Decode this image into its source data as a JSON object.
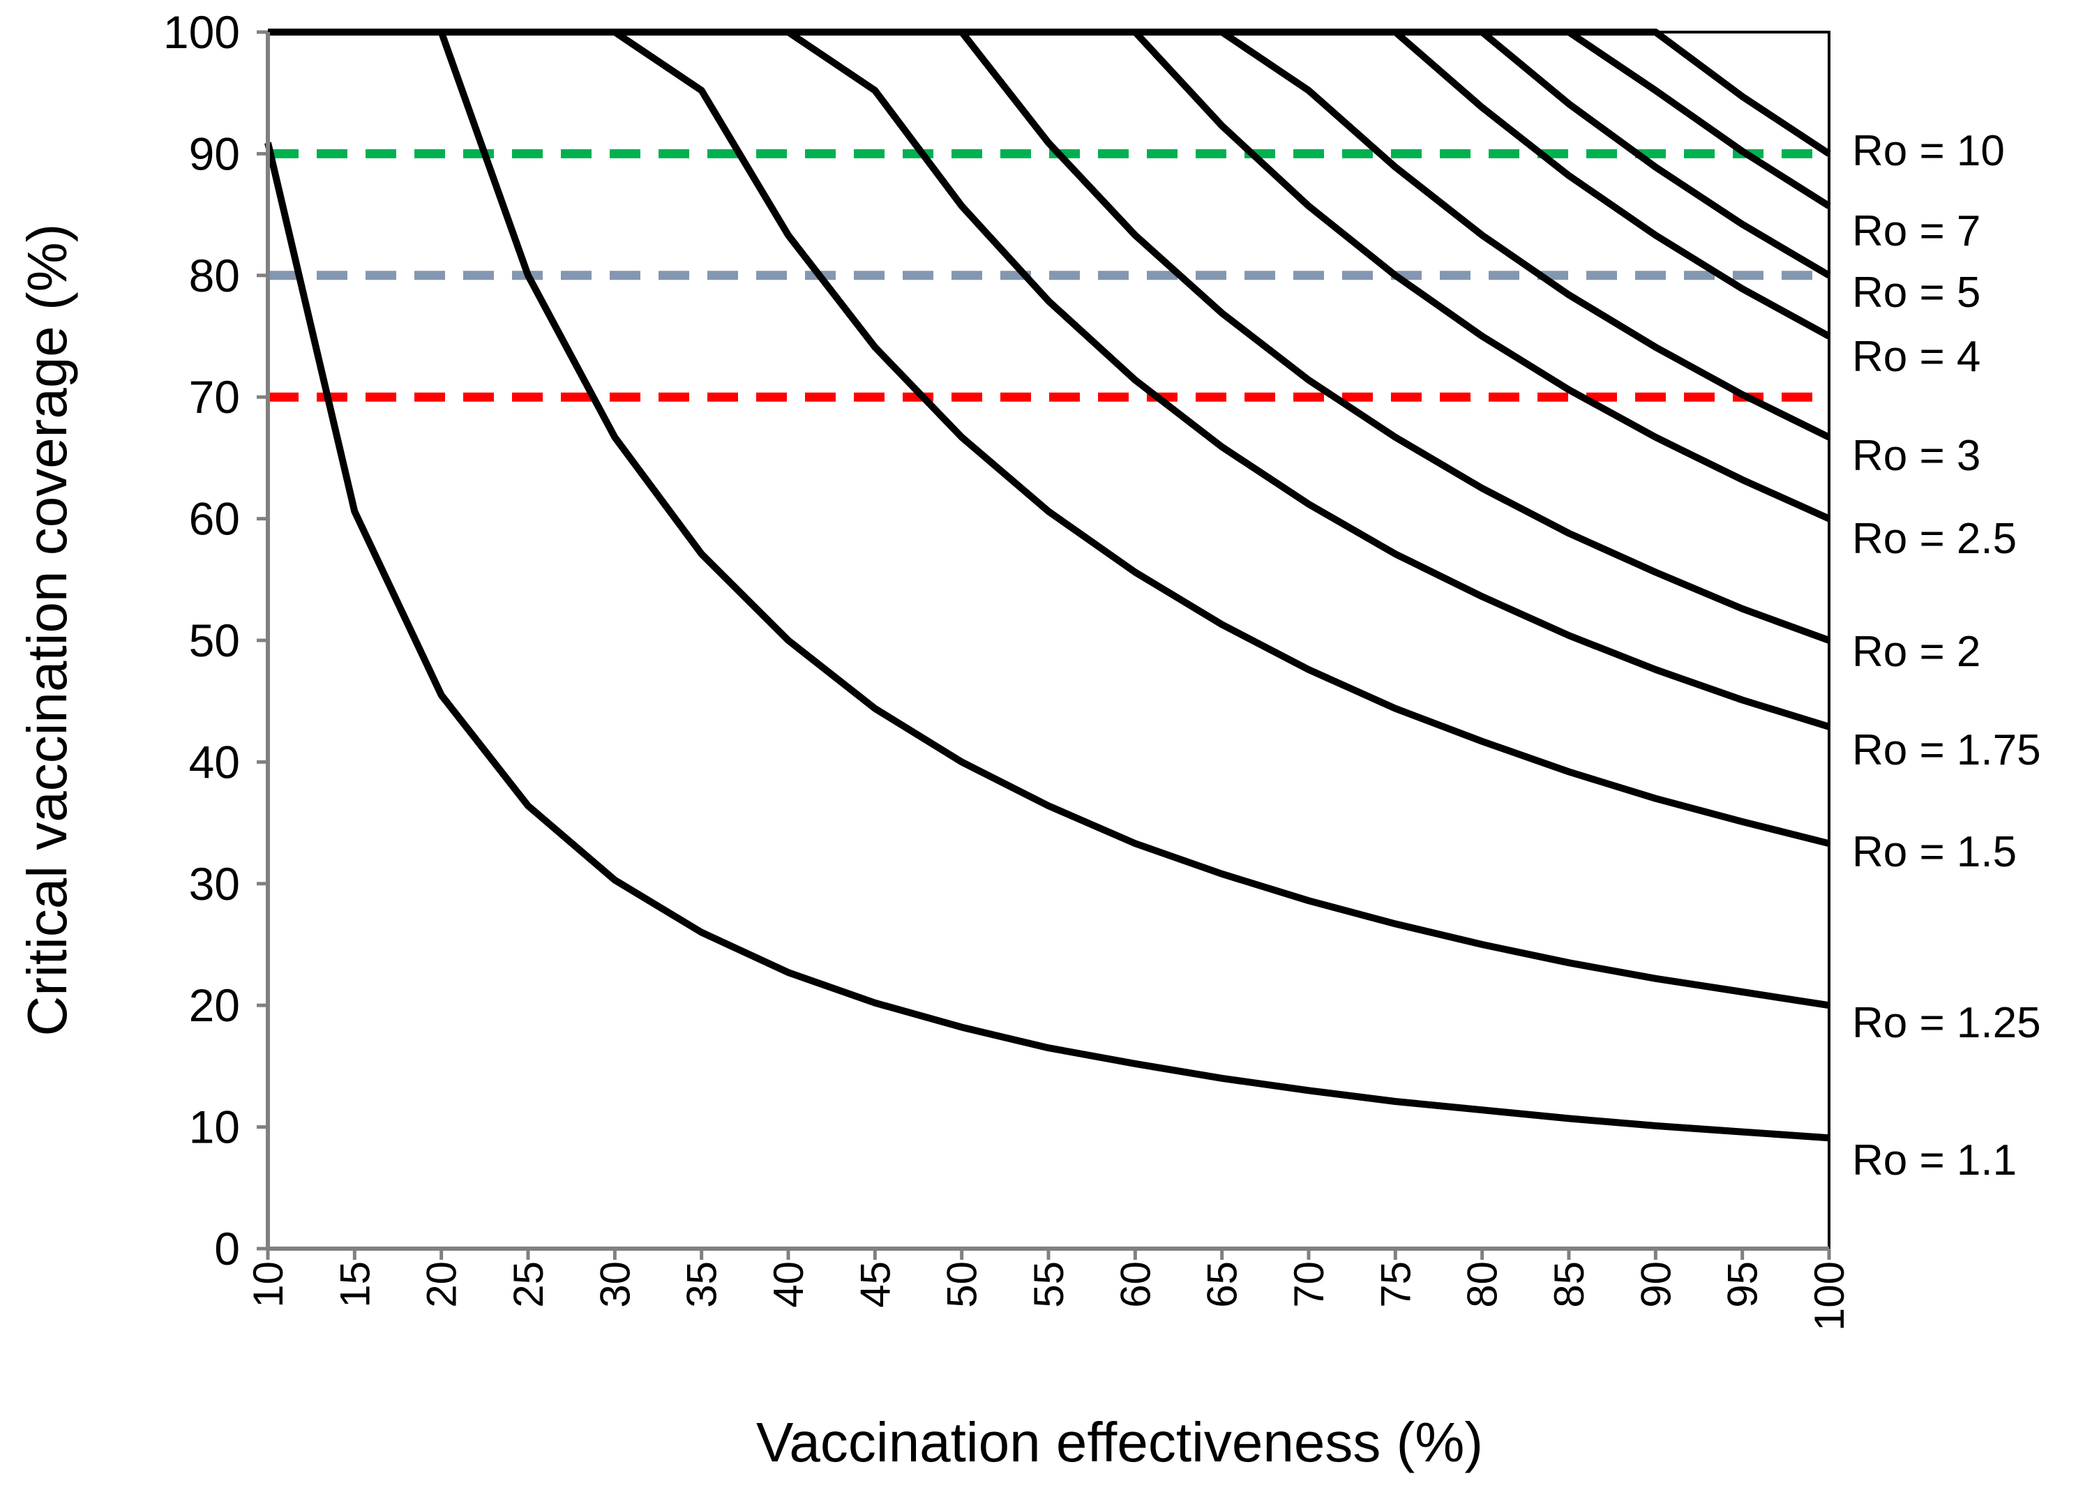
{
  "chart_data": {
    "type": "line",
    "title": "",
    "xlabel": "Vaccination effectiveness (%)",
    "ylabel": "Critical vaccination coverage (%)",
    "xlim": [
      10,
      100
    ],
    "ylim": [
      0,
      100
    ],
    "x_ticks": [
      10,
      15,
      20,
      25,
      30,
      35,
      40,
      45,
      50,
      55,
      60,
      65,
      70,
      75,
      80,
      85,
      90,
      95,
      100
    ],
    "y_ticks": [
      0,
      10,
      20,
      30,
      40,
      50,
      60,
      70,
      80,
      90,
      100
    ],
    "grid": false,
    "x": [
      10,
      15,
      20,
      25,
      30,
      35,
      40,
      45,
      50,
      55,
      60,
      65,
      70,
      75,
      80,
      85,
      90,
      95,
      100
    ],
    "series": [
      {
        "name": "Ro = 1.1",
        "R0": 1.1,
        "values": [
          90.9,
          60.6,
          45.5,
          36.4,
          30.3,
          26.0,
          22.7,
          20.2,
          18.2,
          16.5,
          15.2,
          14.0,
          13.0,
          12.1,
          11.4,
          10.7,
          10.1,
          9.6,
          9.1
        ]
      },
      {
        "name": "Ro = 1.25",
        "R0": 1.25,
        "values": [
          100,
          100,
          100,
          80.0,
          66.7,
          57.1,
          50.0,
          44.4,
          40.0,
          36.4,
          33.3,
          30.8,
          28.6,
          26.7,
          25.0,
          23.5,
          22.2,
          21.1,
          20.0
        ]
      },
      {
        "name": "Ro = 1.5",
        "R0": 1.5,
        "values": [
          100,
          100,
          100,
          100,
          100,
          95.2,
          83.3,
          74.1,
          66.7,
          60.6,
          55.6,
          51.3,
          47.6,
          44.4,
          41.7,
          39.2,
          37.0,
          35.1,
          33.3
        ]
      },
      {
        "name": "Ro = 1.75",
        "R0": 1.75,
        "values": [
          100,
          100,
          100,
          100,
          100,
          100,
          100,
          95.2,
          85.7,
          77.9,
          71.4,
          65.9,
          61.2,
          57.1,
          53.6,
          50.4,
          47.6,
          45.1,
          42.9
        ]
      },
      {
        "name": "Ro = 2",
        "R0": 2,
        "values": [
          100,
          100,
          100,
          100,
          100,
          100,
          100,
          100,
          100,
          90.9,
          83.3,
          76.9,
          71.4,
          66.7,
          62.5,
          58.8,
          55.6,
          52.6,
          50.0
        ]
      },
      {
        "name": "Ro = 2.5",
        "R0": 2.5,
        "values": [
          100,
          100,
          100,
          100,
          100,
          100,
          100,
          100,
          100,
          100,
          100,
          92.3,
          85.7,
          80.0,
          75.0,
          70.6,
          66.7,
          63.2,
          60.0
        ]
      },
      {
        "name": "Ro = 3",
        "R0": 3,
        "values": [
          100,
          100,
          100,
          100,
          100,
          100,
          100,
          100,
          100,
          100,
          100,
          100,
          95.2,
          88.9,
          83.3,
          78.4,
          74.1,
          70.2,
          66.7
        ]
      },
      {
        "name": "Ro = 4",
        "R0": 4,
        "values": [
          100,
          100,
          100,
          100,
          100,
          100,
          100,
          100,
          100,
          100,
          100,
          100,
          100,
          100,
          93.8,
          88.2,
          83.3,
          78.9,
          75.0
        ]
      },
      {
        "name": "Ro = 5",
        "R0": 5,
        "values": [
          100,
          100,
          100,
          100,
          100,
          100,
          100,
          100,
          100,
          100,
          100,
          100,
          100,
          100,
          100,
          94.1,
          88.9,
          84.2,
          80.0
        ]
      },
      {
        "name": "Ro = 7",
        "R0": 7,
        "values": [
          100,
          100,
          100,
          100,
          100,
          100,
          100,
          100,
          100,
          100,
          100,
          100,
          100,
          100,
          100,
          100,
          95.2,
          90.2,
          85.7
        ]
      },
      {
        "name": "Ro = 10",
        "R0": 10,
        "values": [
          100,
          100,
          100,
          100,
          100,
          100,
          100,
          100,
          100,
          100,
          100,
          100,
          100,
          100,
          100,
          100,
          100,
          94.7,
          90.0
        ]
      }
    ],
    "reference_lines": [
      {
        "y": 90,
        "color": "#00b050",
        "style": "dashed"
      },
      {
        "y": 80,
        "color": "#8497b0",
        "style": "dashed"
      },
      {
        "y": 70,
        "color": "#ff0000",
        "style": "dashed"
      }
    ],
    "series_color": "#000000"
  }
}
